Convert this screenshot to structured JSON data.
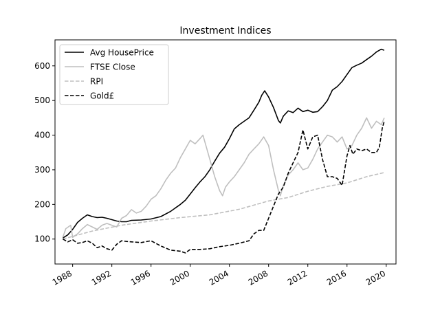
{
  "chart_data": {
    "type": "line",
    "title": "Investment Indices",
    "xlabel": "",
    "ylabel": "",
    "xlim": [
      1986.2,
      2021.0
    ],
    "ylim": [
      28,
      675
    ],
    "x_ticks": [
      1988,
      1992,
      1996,
      2000,
      2004,
      2008,
      2012,
      2016,
      2020
    ],
    "y_ticks": [
      100,
      200,
      300,
      400,
      500,
      600
    ],
    "grid": false,
    "legend_position": "top-left",
    "series": [
      {
        "name": "Avg HousePrice",
        "color": "#000000",
        "dash": "solid",
        "x": [
          1987.0,
          1987.5,
          1988.0,
          1988.5,
          1989.0,
          1989.5,
          1990.0,
          1990.5,
          1991.0,
          1991.5,
          1992.0,
          1992.5,
          1993.0,
          1993.5,
          1994.0,
          1995.0,
          1996.0,
          1997.0,
          1998.0,
          1999.0,
          1999.5,
          2000.0,
          2000.5,
          2001.0,
          2001.5,
          2002.0,
          2002.5,
          2003.0,
          2003.5,
          2004.0,
          2004.5,
          2005.0,
          2005.5,
          2006.0,
          2006.5,
          2007.0,
          2007.3,
          2007.6,
          2008.0,
          2008.5,
          2009.0,
          2009.2,
          2009.5,
          2010.0,
          2010.5,
          2011.0,
          2011.5,
          2012.0,
          2012.5,
          2013.0,
          2013.5,
          2014.0,
          2014.5,
          2015.0,
          2015.5,
          2016.0,
          2016.5,
          2017.0,
          2017.5,
          2018.0,
          2018.5,
          2019.0,
          2019.5,
          2019.8
        ],
        "y": [
          103,
          112,
          128,
          148,
          160,
          170,
          165,
          162,
          163,
          160,
          156,
          152,
          150,
          150,
          154,
          155,
          158,
          165,
          180,
          200,
          212,
          230,
          248,
          265,
          280,
          300,
          325,
          348,
          365,
          390,
          418,
          430,
          440,
          450,
          472,
          495,
          515,
          528,
          510,
          480,
          442,
          435,
          455,
          470,
          465,
          478,
          468,
          472,
          466,
          468,
          482,
          500,
          530,
          540,
          555,
          575,
          595,
          602,
          608,
          618,
          628,
          640,
          648,
          645
        ]
      },
      {
        "name": "FTSE Close",
        "color": "#bfbfbf",
        "dash": "solid",
        "x": [
          1987.0,
          1987.3,
          1987.8,
          1988.0,
          1988.5,
          1989.0,
          1989.5,
          1990.0,
          1990.5,
          1991.0,
          1991.5,
          1992.0,
          1992.5,
          1993.0,
          1993.5,
          1994.0,
          1994.5,
          1995.0,
          1995.5,
          1996.0,
          1996.5,
          1997.0,
          1997.5,
          1998.0,
          1998.5,
          1999.0,
          1999.5,
          2000.0,
          2000.5,
          2001.0,
          2001.3,
          2001.6,
          2002.0,
          2002.5,
          2003.0,
          2003.3,
          2003.6,
          2004.0,
          2004.5,
          2005.0,
          2005.5,
          2006.0,
          2006.5,
          2007.0,
          2007.5,
          2008.0,
          2008.5,
          2009.0,
          2009.2,
          2009.5,
          2010.0,
          2010.5,
          2011.0,
          2011.5,
          2012.0,
          2012.5,
          2013.0,
          2013.5,
          2014.0,
          2014.5,
          2015.0,
          2015.5,
          2016.0,
          2016.5,
          2017.0,
          2017.5,
          2018.0,
          2018.5,
          2019.0,
          2019.5,
          2019.8
        ],
        "y": [
          105,
          130,
          140,
          105,
          115,
          130,
          142,
          135,
          128,
          140,
          145,
          140,
          135,
          160,
          168,
          185,
          175,
          180,
          195,
          215,
          225,
          245,
          270,
          290,
          305,
          335,
          360,
          385,
          375,
          390,
          400,
          370,
          330,
          280,
          240,
          225,
          250,
          265,
          280,
          300,
          320,
          345,
          360,
          375,
          395,
          370,
          300,
          240,
          225,
          255,
          285,
          300,
          320,
          300,
          305,
          330,
          360,
          380,
          400,
          395,
          380,
          395,
          360,
          370,
          400,
          420,
          450,
          420,
          440,
          430,
          450
        ]
      },
      {
        "name": "RPI",
        "color": "#bfbfbf",
        "dash": "dashed",
        "x": [
          1987.0,
          1990.0,
          1993.0,
          1996.0,
          1999.0,
          2002.0,
          2005.0,
          2008.0,
          2010.0,
          2012.0,
          2014.0,
          2016.0,
          2018.0,
          2019.8
        ],
        "y": [
          100,
          123,
          140,
          152,
          162,
          170,
          186,
          210,
          220,
          238,
          252,
          262,
          280,
          292
        ]
      },
      {
        "name": "Gold£",
        "color": "#000000",
        "dash": "dashed",
        "x": [
          1987.0,
          1987.5,
          1988.0,
          1988.5,
          1989.0,
          1989.5,
          1990.0,
          1990.5,
          1991.0,
          1991.5,
          1992.0,
          1992.5,
          1993.0,
          1993.5,
          1994.0,
          1995.0,
          1996.0,
          1997.0,
          1998.0,
          1999.0,
          1999.5,
          2000.0,
          2001.0,
          2002.0,
          2003.0,
          2004.0,
          2005.0,
          2006.0,
          2006.5,
          2007.0,
          2007.5,
          2008.0,
          2008.5,
          2009.0,
          2009.5,
          2010.0,
          2010.5,
          2011.0,
          2011.5,
          2012.0,
          2012.5,
          2013.0,
          2013.5,
          2014.0,
          2014.5,
          2015.0,
          2015.5,
          2016.0,
          2016.3,
          2016.6,
          2017.0,
          2017.5,
          2018.0,
          2018.5,
          2019.0,
          2019.3,
          2019.6,
          2019.8
        ],
        "y": [
          100,
          92,
          98,
          88,
          90,
          95,
          88,
          75,
          80,
          72,
          68,
          85,
          95,
          93,
          92,
          90,
          95,
          80,
          68,
          65,
          60,
          70,
          70,
          72,
          78,
          82,
          88,
          95,
          115,
          125,
          125,
          160,
          195,
          230,
          250,
          290,
          320,
          350,
          415,
          360,
          395,
          400,
          330,
          280,
          280,
          275,
          255,
          340,
          370,
          345,
          360,
          355,
          360,
          350,
          350,
          365,
          420,
          440
        ]
      }
    ]
  }
}
